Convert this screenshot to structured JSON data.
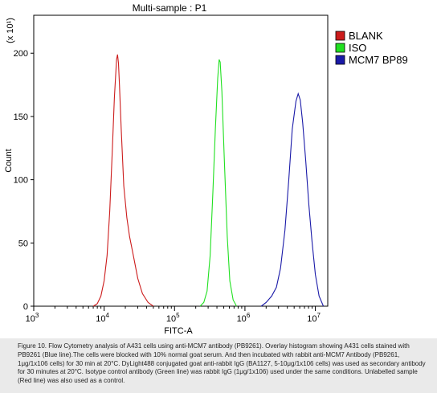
{
  "chart_data": {
    "type": "line",
    "title": "Multi-sample : P1",
    "xlabel": "FITC-A",
    "ylabel": "Count",
    "y_multiplier": "(x 10¹)",
    "x_scale": "log",
    "xlim": [
      1000,
      15000000
    ],
    "ylim": [
      0,
      230
    ],
    "x_ticks": [
      {
        "value": 1000,
        "base": "10",
        "exp": "3"
      },
      {
        "value": 10000,
        "base": "10",
        "exp": "4"
      },
      {
        "value": 100000,
        "base": "10",
        "exp": "5"
      },
      {
        "value": 1000000,
        "base": "10",
        "exp": "6"
      },
      {
        "value": 10000000,
        "base": "10",
        "exp": "7"
      }
    ],
    "y_ticks": [
      0,
      50,
      100,
      150,
      200
    ],
    "y_tick_labels": [
      "0",
      "50",
      "100",
      "150",
      "200"
    ],
    "legend_position": "top-right",
    "grid": false,
    "series": [
      {
        "name": "BLANK",
        "color": "#cc1c1c",
        "points": [
          [
            7000,
            0
          ],
          [
            8000,
            2
          ],
          [
            9000,
            8
          ],
          [
            10000,
            20
          ],
          [
            11000,
            40
          ],
          [
            12000,
            75
          ],
          [
            13000,
            120
          ],
          [
            14000,
            165
          ],
          [
            15000,
            195
          ],
          [
            15500,
            199
          ],
          [
            16000,
            192
          ],
          [
            16500,
            175
          ],
          [
            17500,
            140
          ],
          [
            19000,
            95
          ],
          [
            21000,
            70
          ],
          [
            23000,
            55
          ],
          [
            26000,
            40
          ],
          [
            30000,
            22
          ],
          [
            35000,
            10
          ],
          [
            42000,
            3
          ],
          [
            50000,
            0
          ]
        ]
      },
      {
        "name": "ISO",
        "color": "#20e020",
        "points": [
          [
            230000,
            0
          ],
          [
            260000,
            3
          ],
          [
            290000,
            12
          ],
          [
            320000,
            40
          ],
          [
            350000,
            90
          ],
          [
            380000,
            140
          ],
          [
            410000,
            180
          ],
          [
            430000,
            195
          ],
          [
            445000,
            193
          ],
          [
            470000,
            170
          ],
          [
            510000,
            115
          ],
          [
            560000,
            55
          ],
          [
            610000,
            20
          ],
          [
            680000,
            5
          ],
          [
            760000,
            0
          ]
        ]
      },
      {
        "name": "MCM7 BP89",
        "color": "#1a1aa8",
        "points": [
          [
            1700000,
            0
          ],
          [
            2000000,
            3
          ],
          [
            2400000,
            8
          ],
          [
            2800000,
            15
          ],
          [
            3200000,
            30
          ],
          [
            3700000,
            60
          ],
          [
            4200000,
            100
          ],
          [
            4700000,
            140
          ],
          [
            5300000,
            162
          ],
          [
            5700000,
            168
          ],
          [
            6100000,
            163
          ],
          [
            6600000,
            145
          ],
          [
            7300000,
            115
          ],
          [
            8100000,
            80
          ],
          [
            9000000,
            50
          ],
          [
            10000000,
            25
          ],
          [
            11300000,
            8
          ],
          [
            13000000,
            0
          ]
        ]
      }
    ]
  },
  "caption": "Figure 10. Flow Cytometry analysis of A431 cells using anti-MCM7 antibody (PB9261).  Overlay histogram showing A431 cells stained with PB9261 (Blue line).The cells were blocked with 10% normal goat serum. And then incubated with rabbit anti-MCM7 Antibody (PB9261, 1μg/1x106 cells) for 30 min at 20°C. DyLight488 conjugated goat anti-rabbit IgG (BA1127, 5-10μg/1x106 cells) was used as secondary antibody for 30 minutes at 20°C. Isotype control antibody (Green line) was rabbit IgG (1μg/1x106) used under the same conditions. Unlabelled sample (Red line) was also used as a control."
}
